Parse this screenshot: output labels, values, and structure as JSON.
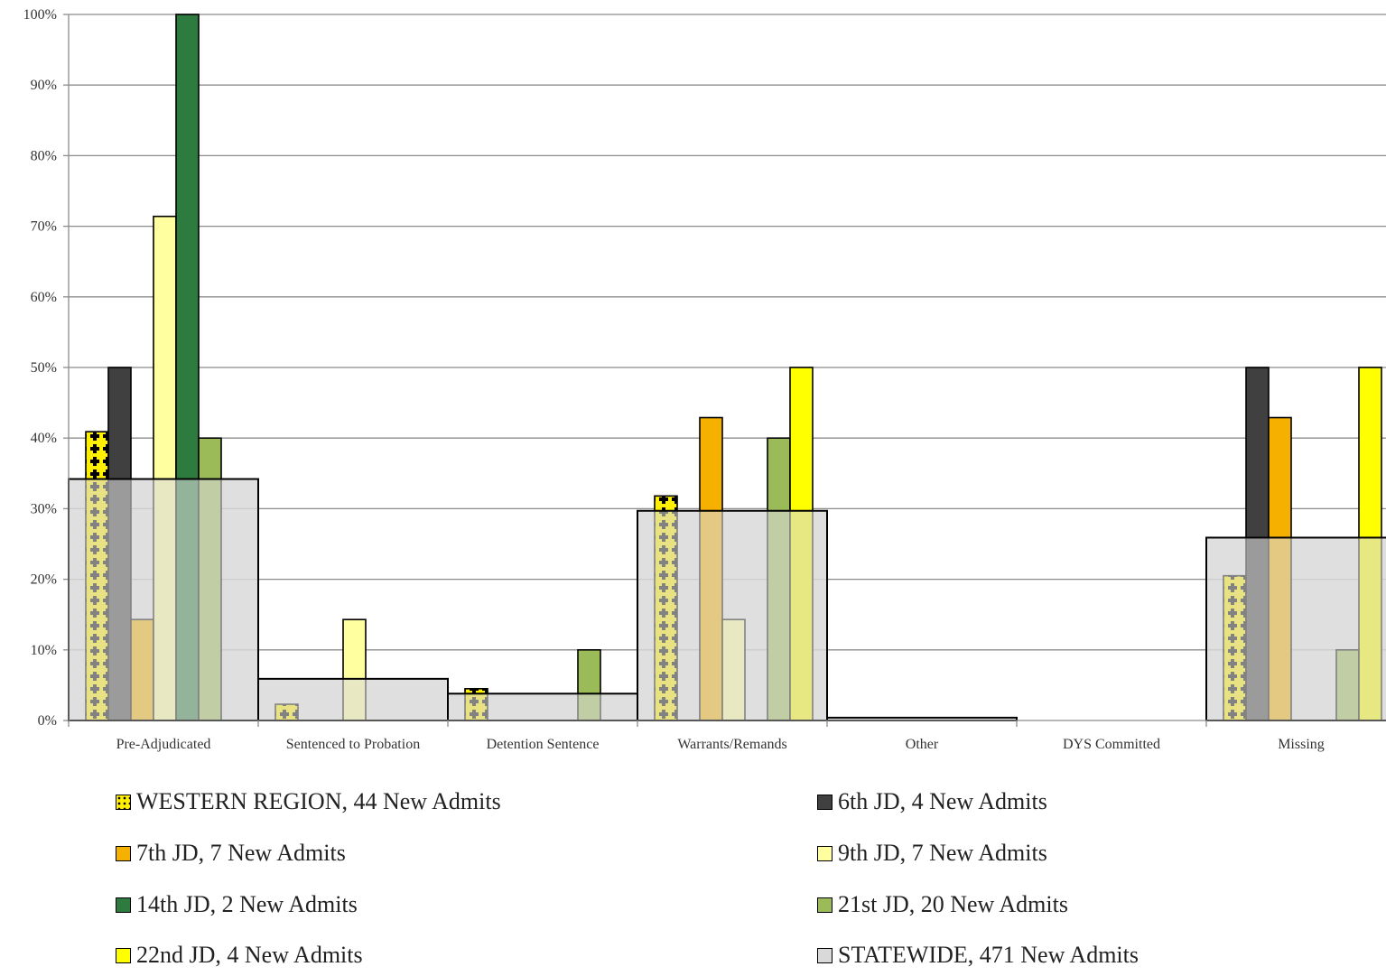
{
  "chart_data": {
    "type": "bar",
    "title": "",
    "xlabel": "",
    "ylabel": "",
    "ylim": [
      0,
      100
    ],
    "y_tick_labels": [
      "0%",
      "10%",
      "20%",
      "30%",
      "40%",
      "50%",
      "60%",
      "70%",
      "80%",
      "90%",
      "100%"
    ],
    "categories": [
      "Pre-Adjudicated",
      "Sentenced to Probation",
      "Detention Sentence",
      "Warrants/Remands",
      "Other",
      "DYS Committed",
      "Missing"
    ],
    "grid": true,
    "legend_position": "bottom",
    "series": [
      {
        "name": "WESTERN REGION, 44 New Admits",
        "color": "#FFEF00",
        "pattern": "dots",
        "values": [
          40.9,
          2.3,
          4.5,
          31.8,
          0,
          0,
          20.5
        ]
      },
      {
        "name": "6th JD, 4 New Admits",
        "color": "#404040",
        "values": [
          50,
          0,
          0,
          0,
          0,
          0,
          50
        ]
      },
      {
        "name": "7th JD, 7 New Admits",
        "color": "#F6B100",
        "values": [
          14.3,
          0,
          0,
          42.9,
          0,
          0,
          42.9
        ]
      },
      {
        "name": "9th JD, 7 New Admits",
        "color": "#FFFFA0",
        "values": [
          71.4,
          14.3,
          0,
          14.3,
          0,
          0,
          0
        ]
      },
      {
        "name": "14th JD, 2 New Admits",
        "color": "#2E7B3F",
        "values": [
          100,
          0,
          0,
          0,
          0,
          0,
          0
        ]
      },
      {
        "name": "21st JD, 20 New Admits",
        "color": "#9BBB59",
        "values": [
          40,
          0,
          10,
          40,
          0,
          0,
          10
        ]
      },
      {
        "name": "22nd JD, 4 New Admits",
        "color": "#FFFF00",
        "values": [
          0,
          0,
          0,
          50,
          0,
          0,
          50
        ]
      },
      {
        "name": "STATEWIDE, 471 New Admits",
        "color": "#D9D9D9",
        "overlay": true,
        "values": [
          34.2,
          5.9,
          3.8,
          29.7,
          0.4,
          0,
          25.9
        ]
      }
    ]
  }
}
